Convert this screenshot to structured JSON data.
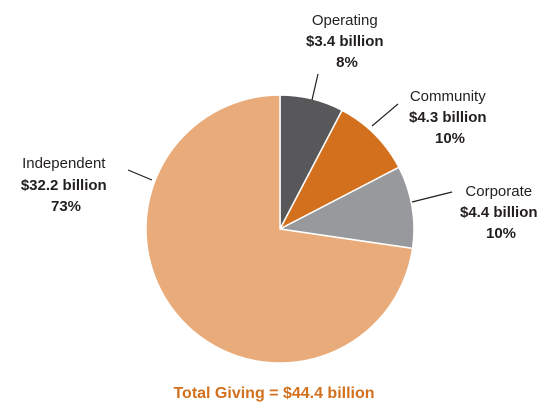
{
  "chart_data": {
    "type": "pie",
    "slices": [
      {
        "name": "Operating",
        "amount": "$3.4 billion",
        "pct_label": "8%",
        "value": 3.4,
        "color": "#58585a"
      },
      {
        "name": "Community",
        "amount": "$4.3 billion",
        "pct_label": "10%",
        "value": 4.3,
        "color": "#d3701d"
      },
      {
        "name": "Corporate",
        "amount": "$4.4 billion",
        "pct_label": "10%",
        "value": 4.4,
        "color": "#98999c"
      },
      {
        "name": "Independent",
        "amount": "$32.2 billion",
        "pct_label": "73%",
        "value": 32.2,
        "color": "#e8ab79"
      }
    ],
    "total_label": "Total Giving = $44.4 billion",
    "total_color": "#d3701d"
  }
}
